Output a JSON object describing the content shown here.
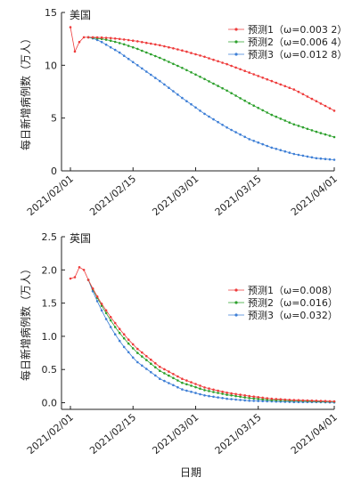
{
  "figure": {
    "xlabel": "日期",
    "ylabel": "每日新增病例数（万人）"
  },
  "chart_data": [
    {
      "type": "line",
      "panel_title": "美国",
      "ylabel": "每日新增病例数（万人）",
      "x_ticks": [
        "2021/02/01",
        "2021/02/15",
        "2021/03/01",
        "2021/03/15",
        "2021/04/01"
      ],
      "y_ticks": [
        "0",
        "5",
        "10",
        "15"
      ],
      "ylim": [
        0,
        15
      ],
      "x_range": [
        0,
        59
      ],
      "grid": false,
      "legend_position": "top-right",
      "series": [
        {
          "name": "预测1（ω=0.003 2）",
          "color": "#ee3b3b",
          "points": [
            [
              0,
              13.6
            ],
            [
              1,
              11.3
            ],
            [
              2,
              12.2
            ],
            [
              3,
              12.65
            ],
            [
              4,
              12.65
            ],
            [
              5,
              12.65
            ],
            [
              6,
              12.64
            ],
            [
              7,
              12.62
            ],
            [
              8,
              12.6
            ],
            [
              9,
              12.57
            ],
            [
              10,
              12.53
            ],
            [
              11,
              12.49
            ],
            [
              12,
              12.44
            ],
            [
              13,
              12.39
            ],
            [
              14,
              12.33
            ],
            [
              15,
              12.27
            ],
            [
              20,
              11.9
            ],
            [
              25,
              11.4
            ],
            [
              30,
              10.8
            ],
            [
              35,
              10.1
            ],
            [
              40,
              9.3
            ],
            [
              45,
              8.5
            ],
            [
              50,
              7.7
            ],
            [
              55,
              6.6
            ],
            [
              59,
              5.7
            ]
          ]
        },
        {
          "name": "预测2（ω=0.006 4）",
          "color": "#2ca02c",
          "points": [
            [
              4,
              12.65
            ],
            [
              5,
              12.6
            ],
            [
              6,
              12.55
            ],
            [
              7,
              12.5
            ],
            [
              8,
              12.42
            ],
            [
              9,
              12.33
            ],
            [
              10,
              12.22
            ],
            [
              11,
              12.1
            ],
            [
              12,
              11.98
            ],
            [
              13,
              11.84
            ],
            [
              14,
              11.7
            ],
            [
              15,
              11.55
            ],
            [
              20,
              10.7
            ],
            [
              25,
              9.75
            ],
            [
              30,
              8.7
            ],
            [
              35,
              7.6
            ],
            [
              40,
              6.4
            ],
            [
              45,
              5.3
            ],
            [
              50,
              4.4
            ],
            [
              55,
              3.7
            ],
            [
              59,
              3.2
            ]
          ]
        },
        {
          "name": "预测3（ω=0.012 8）",
          "color": "#3e7fd6",
          "points": [
            [
              4,
              12.65
            ],
            [
              5,
              12.55
            ],
            [
              6,
              12.4
            ],
            [
              7,
              12.2
            ],
            [
              8,
              11.95
            ],
            [
              9,
              11.7
            ],
            [
              10,
              11.45
            ],
            [
              11,
              11.2
            ],
            [
              12,
              10.9
            ],
            [
              13,
              10.6
            ],
            [
              14,
              10.3
            ],
            [
              15,
              10.0
            ],
            [
              20,
              8.5
            ],
            [
              25,
              6.9
            ],
            [
              30,
              5.4
            ],
            [
              35,
              4.1
            ],
            [
              40,
              3.0
            ],
            [
              45,
              2.2
            ],
            [
              50,
              1.6
            ],
            [
              55,
              1.2
            ],
            [
              59,
              1.05
            ]
          ]
        }
      ]
    },
    {
      "type": "line",
      "panel_title": "英国",
      "ylabel": "每日新增病例数（万人）",
      "x_ticks": [
        "2021/02/01",
        "2021/02/15",
        "2021/03/01",
        "2021/03/15",
        "2021/04/01"
      ],
      "y_ticks": [
        "0.0",
        "0.5",
        "1.0",
        "1.5",
        "2.0",
        "2.5"
      ],
      "ylim": [
        -0.1,
        2.5
      ],
      "x_range": [
        0,
        59
      ],
      "grid": false,
      "legend_position": "middle-right",
      "series": [
        {
          "name": "预测1（ω=0.008）",
          "color": "#ee3b3b",
          "points": [
            [
              0,
              1.87
            ],
            [
              1,
              1.89
            ],
            [
              2,
              2.04
            ],
            [
              3,
              2.0
            ],
            [
              4,
              1.85
            ],
            [
              5,
              1.72
            ],
            [
              6,
              1.6
            ],
            [
              7,
              1.49
            ],
            [
              8,
              1.39
            ],
            [
              9,
              1.29
            ],
            [
              10,
              1.2
            ],
            [
              11,
              1.11
            ],
            [
              12,
              1.03
            ],
            [
              13,
              0.95
            ],
            [
              14,
              0.88
            ],
            [
              15,
              0.81
            ],
            [
              20,
              0.54
            ],
            [
              25,
              0.36
            ],
            [
              30,
              0.23
            ],
            [
              35,
              0.15
            ],
            [
              40,
              0.1
            ],
            [
              45,
              0.06
            ],
            [
              50,
              0.04
            ],
            [
              55,
              0.03
            ],
            [
              59,
              0.02
            ]
          ]
        },
        {
          "name": "预测2（ω=0.016）",
          "color": "#2ca02c",
          "points": [
            [
              4,
              1.85
            ],
            [
              5,
              1.71
            ],
            [
              6,
              1.58
            ],
            [
              7,
              1.46
            ],
            [
              8,
              1.35
            ],
            [
              9,
              1.24
            ],
            [
              10,
              1.14
            ],
            [
              11,
              1.05
            ],
            [
              12,
              0.97
            ],
            [
              13,
              0.89
            ],
            [
              14,
              0.82
            ],
            [
              15,
              0.75
            ],
            [
              20,
              0.48
            ],
            [
              25,
              0.3
            ],
            [
              30,
              0.19
            ],
            [
              35,
              0.12
            ],
            [
              40,
              0.07
            ],
            [
              45,
              0.04
            ],
            [
              50,
              0.03
            ],
            [
              55,
              0.02
            ],
            [
              59,
              0.015
            ]
          ]
        },
        {
          "name": "预测3（ω=0.032）",
          "color": "#3e7fd6",
          "points": [
            [
              4,
              1.85
            ],
            [
              5,
              1.68
            ],
            [
              6,
              1.53
            ],
            [
              7,
              1.39
            ],
            [
              8,
              1.26
            ],
            [
              9,
              1.14
            ],
            [
              10,
              1.03
            ],
            [
              11,
              0.93
            ],
            [
              12,
              0.84
            ],
            [
              13,
              0.76
            ],
            [
              14,
              0.68
            ],
            [
              15,
              0.61
            ],
            [
              20,
              0.36
            ],
            [
              25,
              0.2
            ],
            [
              30,
              0.11
            ],
            [
              35,
              0.06
            ],
            [
              40,
              0.03
            ],
            [
              45,
              0.02
            ],
            [
              50,
              0.01
            ],
            [
              55,
              0.01
            ],
            [
              59,
              0.005
            ]
          ]
        }
      ]
    }
  ]
}
